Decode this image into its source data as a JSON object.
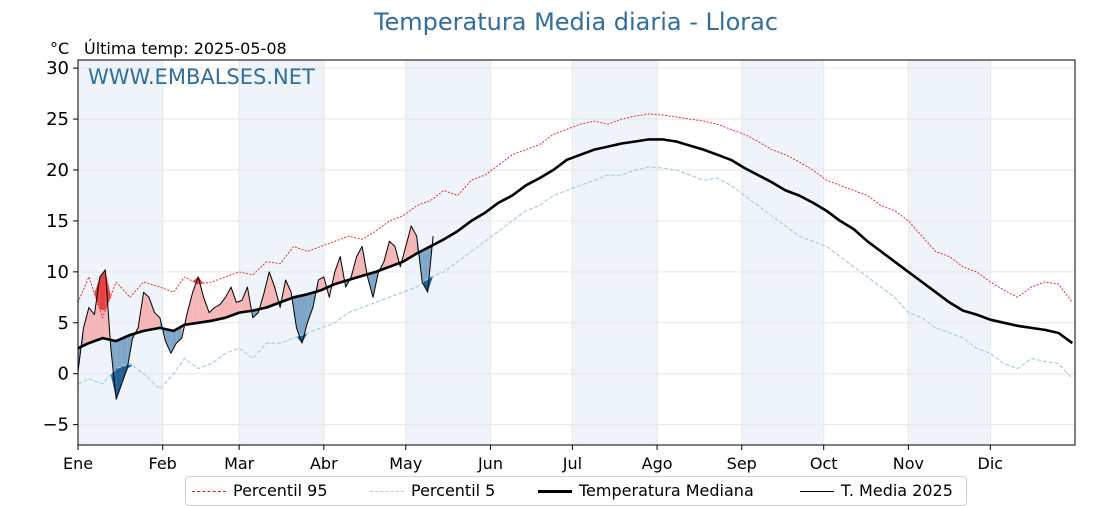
{
  "chart_data": {
    "type": "line",
    "title": "Temperatura Media diaria - Llorac",
    "unit_label": "°C",
    "last_temp_label": "Última temp: 2025-05-08",
    "watermark": "WWW.EMBALSES.NET",
    "ylim": [
      -7,
      30.8
    ],
    "yticks": [
      -5,
      0,
      5,
      10,
      15,
      20,
      25,
      30
    ],
    "months": [
      "Ene",
      "Feb",
      "Mar",
      "Abr",
      "May",
      "Jun",
      "Jul",
      "Ago",
      "Sep",
      "Oct",
      "Nov",
      "Dic"
    ],
    "month_start_days": [
      1,
      32,
      60,
      91,
      121,
      152,
      182,
      213,
      244,
      274,
      305,
      335
    ],
    "grid": true,
    "legend_position": "bottom",
    "colors": {
      "p95": "#e31a1c",
      "p5": "#a6cee3",
      "median": "#000000",
      "year": "#000000",
      "above": "#f4b6b6",
      "below": "#7ea6c8",
      "band": "#eef4fa",
      "title": "#2f6e9e"
    },
    "series": [
      {
        "key": "p95",
        "name": "Percentil 95",
        "points": [
          [
            1,
            7
          ],
          [
            5,
            9.5
          ],
          [
            10,
            5.5
          ],
          [
            15,
            9
          ],
          [
            20,
            7.5
          ],
          [
            25,
            9
          ],
          [
            31,
            8.5
          ],
          [
            36,
            8
          ],
          [
            40,
            9.5
          ],
          [
            45,
            8.8
          ],
          [
            50,
            9
          ],
          [
            55,
            9.5
          ],
          [
            60,
            10
          ],
          [
            65,
            9.7
          ],
          [
            70,
            11
          ],
          [
            75,
            10.8
          ],
          [
            80,
            12.5
          ],
          [
            85,
            12
          ],
          [
            90,
            12.5
          ],
          [
            95,
            13
          ],
          [
            100,
            13.5
          ],
          [
            105,
            13.2
          ],
          [
            110,
            14
          ],
          [
            115,
            15
          ],
          [
            120,
            15.5
          ],
          [
            125,
            16.5
          ],
          [
            130,
            17
          ],
          [
            135,
            18
          ],
          [
            140,
            17.5
          ],
          [
            145,
            19
          ],
          [
            150,
            19.5
          ],
          [
            155,
            20.5
          ],
          [
            160,
            21.5
          ],
          [
            165,
            22
          ],
          [
            170,
            22.5
          ],
          [
            175,
            23.5
          ],
          [
            180,
            24
          ],
          [
            185,
            24.5
          ],
          [
            190,
            24.8
          ],
          [
            195,
            24.5
          ],
          [
            200,
            25
          ],
          [
            205,
            25.3
          ],
          [
            210,
            25.5
          ],
          [
            215,
            25.4
          ],
          [
            220,
            25.2
          ],
          [
            225,
            25
          ],
          [
            230,
            24.8
          ],
          [
            235,
            24.5
          ],
          [
            240,
            24
          ],
          [
            245,
            23.5
          ],
          [
            250,
            22.8
          ],
          [
            255,
            22
          ],
          [
            260,
            21.5
          ],
          [
            265,
            20.8
          ],
          [
            270,
            20
          ],
          [
            275,
            19
          ],
          [
            280,
            18.5
          ],
          [
            285,
            18
          ],
          [
            290,
            17.5
          ],
          [
            295,
            16.5
          ],
          [
            300,
            16
          ],
          [
            305,
            15
          ],
          [
            310,
            13.5
          ],
          [
            315,
            12
          ],
          [
            320,
            11.5
          ],
          [
            325,
            10.5
          ],
          [
            330,
            10
          ],
          [
            335,
            9
          ],
          [
            340,
            8.2
          ],
          [
            345,
            7.5
          ],
          [
            350,
            8.5
          ],
          [
            355,
            9
          ],
          [
            360,
            8.8
          ],
          [
            365,
            7
          ]
        ]
      },
      {
        "key": "p5",
        "name": "Percentil 5",
        "points": [
          [
            1,
            -1
          ],
          [
            5,
            -0.5
          ],
          [
            10,
            -1
          ],
          [
            15,
            0.5
          ],
          [
            20,
            1
          ],
          [
            25,
            0
          ],
          [
            31,
            -1.5
          ],
          [
            36,
            0
          ],
          [
            40,
            1.5
          ],
          [
            45,
            0.5
          ],
          [
            50,
            1
          ],
          [
            55,
            2
          ],
          [
            60,
            2.5
          ],
          [
            65,
            1.5
          ],
          [
            70,
            3
          ],
          [
            75,
            3
          ],
          [
            80,
            3.5
          ],
          [
            85,
            4
          ],
          [
            90,
            4.5
          ],
          [
            95,
            5
          ],
          [
            100,
            6
          ],
          [
            105,
            6.5
          ],
          [
            110,
            7
          ],
          [
            115,
            7.5
          ],
          [
            120,
            8
          ],
          [
            125,
            8.5
          ],
          [
            130,
            9.5
          ],
          [
            135,
            10
          ],
          [
            140,
            11
          ],
          [
            145,
            12
          ],
          [
            150,
            13
          ],
          [
            155,
            14
          ],
          [
            160,
            15
          ],
          [
            165,
            16
          ],
          [
            170,
            16.5
          ],
          [
            175,
            17.5
          ],
          [
            180,
            18
          ],
          [
            185,
            18.5
          ],
          [
            190,
            19
          ],
          [
            195,
            19.5
          ],
          [
            200,
            19.5
          ],
          [
            205,
            20
          ],
          [
            210,
            20.3
          ],
          [
            215,
            20.2
          ],
          [
            220,
            20
          ],
          [
            225,
            19.5
          ],
          [
            230,
            19
          ],
          [
            235,
            19.2
          ],
          [
            240,
            18.5
          ],
          [
            245,
            17.5
          ],
          [
            250,
            16.5
          ],
          [
            255,
            15.5
          ],
          [
            260,
            14.5
          ],
          [
            265,
            13.5
          ],
          [
            270,
            13
          ],
          [
            275,
            12.5
          ],
          [
            280,
            11.5
          ],
          [
            285,
            10.5
          ],
          [
            290,
            9.5
          ],
          [
            295,
            8.5
          ],
          [
            300,
            7.5
          ],
          [
            305,
            6
          ],
          [
            310,
            5.5
          ],
          [
            315,
            4.5
          ],
          [
            320,
            4
          ],
          [
            325,
            3.5
          ],
          [
            330,
            2.5
          ],
          [
            335,
            2
          ],
          [
            340,
            1
          ],
          [
            345,
            0.5
          ],
          [
            350,
            1.5
          ],
          [
            355,
            1.2
          ],
          [
            360,
            1
          ],
          [
            365,
            -0.5
          ]
        ]
      },
      {
        "key": "median",
        "name": "Temperatura Mediana",
        "points": [
          [
            1,
            2.5
          ],
          [
            5,
            3
          ],
          [
            10,
            3.5
          ],
          [
            15,
            3.2
          ],
          [
            20,
            3.8
          ],
          [
            25,
            4.2
          ],
          [
            31,
            4.5
          ],
          [
            36,
            4.2
          ],
          [
            40,
            4.8
          ],
          [
            45,
            5
          ],
          [
            50,
            5.2
          ],
          [
            55,
            5.5
          ],
          [
            60,
            6
          ],
          [
            65,
            6.2
          ],
          [
            70,
            6.5
          ],
          [
            75,
            7
          ],
          [
            80,
            7.5
          ],
          [
            85,
            7.8
          ],
          [
            90,
            8.2
          ],
          [
            95,
            8.8
          ],
          [
            100,
            9.2
          ],
          [
            105,
            9.6
          ],
          [
            110,
            10
          ],
          [
            115,
            10.5
          ],
          [
            120,
            11
          ],
          [
            125,
            11.8
          ],
          [
            130,
            12.5
          ],
          [
            135,
            13.2
          ],
          [
            140,
            14
          ],
          [
            145,
            15
          ],
          [
            150,
            15.8
          ],
          [
            155,
            16.8
          ],
          [
            160,
            17.5
          ],
          [
            165,
            18.5
          ],
          [
            170,
            19.2
          ],
          [
            175,
            20
          ],
          [
            180,
            21
          ],
          [
            185,
            21.5
          ],
          [
            190,
            22
          ],
          [
            195,
            22.3
          ],
          [
            200,
            22.6
          ],
          [
            205,
            22.8
          ],
          [
            210,
            23
          ],
          [
            215,
            23
          ],
          [
            220,
            22.8
          ],
          [
            225,
            22.4
          ],
          [
            230,
            22
          ],
          [
            235,
            21.5
          ],
          [
            240,
            21
          ],
          [
            245,
            20.2
          ],
          [
            250,
            19.5
          ],
          [
            255,
            18.8
          ],
          [
            260,
            18
          ],
          [
            265,
            17.5
          ],
          [
            270,
            16.8
          ],
          [
            275,
            16
          ],
          [
            280,
            15
          ],
          [
            285,
            14.2
          ],
          [
            290,
            13
          ],
          [
            295,
            12
          ],
          [
            300,
            11
          ],
          [
            305,
            10
          ],
          [
            310,
            9
          ],
          [
            315,
            8
          ],
          [
            320,
            7
          ],
          [
            325,
            6.2
          ],
          [
            330,
            5.8
          ],
          [
            335,
            5.3
          ],
          [
            340,
            5
          ],
          [
            345,
            4.7
          ],
          [
            350,
            4.5
          ],
          [
            355,
            4.3
          ],
          [
            360,
            4
          ],
          [
            365,
            3
          ]
        ]
      },
      {
        "key": "year",
        "name": "T. Media 2025",
        "points": [
          [
            1,
            0.2
          ],
          [
            3,
            4.5
          ],
          [
            5,
            6.5
          ],
          [
            7,
            5.8
          ],
          [
            9,
            9.5
          ],
          [
            11,
            10.2
          ],
          [
            13,
            2.5
          ],
          [
            15,
            -2.5
          ],
          [
            17,
            -1
          ],
          [
            19,
            0.5
          ],
          [
            21,
            3.5
          ],
          [
            23,
            4.5
          ],
          [
            25,
            8
          ],
          [
            27,
            7.5
          ],
          [
            29,
            6
          ],
          [
            31,
            5.5
          ],
          [
            33,
            3.2
          ],
          [
            35,
            2
          ],
          [
            37,
            3
          ],
          [
            39,
            3.5
          ],
          [
            41,
            6
          ],
          [
            43,
            8
          ],
          [
            45,
            9.5
          ],
          [
            47,
            7.5
          ],
          [
            49,
            6
          ],
          [
            51,
            6.5
          ],
          [
            53,
            6.8
          ],
          [
            55,
            7.5
          ],
          [
            57,
            8.5
          ],
          [
            59,
            7
          ],
          [
            61,
            7.2
          ],
          [
            63,
            8.5
          ],
          [
            65,
            5.5
          ],
          [
            67,
            6
          ],
          [
            69,
            7.8
          ],
          [
            71,
            10
          ],
          [
            73,
            8.5
          ],
          [
            75,
            6.5
          ],
          [
            77,
            9.2
          ],
          [
            79,
            8
          ],
          [
            81,
            4.5
          ],
          [
            83,
            3
          ],
          [
            85,
            5
          ],
          [
            87,
            6.5
          ],
          [
            89,
            9.2
          ],
          [
            91,
            9.5
          ],
          [
            93,
            7.5
          ],
          [
            95,
            10
          ],
          [
            97,
            11.5
          ],
          [
            99,
            8.5
          ],
          [
            101,
            9.5
          ],
          [
            103,
            11.5
          ],
          [
            105,
            12.5
          ],
          [
            107,
            9.5
          ],
          [
            109,
            7.5
          ],
          [
            111,
            10
          ],
          [
            113,
            11
          ],
          [
            115,
            13
          ],
          [
            117,
            12.5
          ],
          [
            119,
            10.5
          ],
          [
            121,
            12.5
          ],
          [
            123,
            14.5
          ],
          [
            125,
            13.5
          ],
          [
            127,
            9
          ],
          [
            129,
            8
          ],
          [
            131,
            13.5
          ]
        ]
      }
    ],
    "fill_days": [
      1,
      3,
      5,
      7,
      9,
      11,
      13,
      15,
      17,
      19,
      21,
      23,
      25,
      27,
      29,
      31,
      33,
      35,
      37,
      39,
      41,
      43,
      45,
      47,
      49,
      51,
      53,
      55,
      57,
      59,
      61,
      63,
      65,
      67,
      69,
      71,
      73,
      75,
      77,
      79,
      81,
      83,
      85,
      87,
      89,
      91,
      93,
      95,
      97,
      99,
      101,
      103,
      105,
      107,
      109,
      111,
      113,
      115,
      117,
      119,
      121,
      123,
      125,
      127,
      129,
      131
    ]
  },
  "legend": [
    "Percentil 95",
    "Percentil 5",
    "Temperatura Mediana",
    "T. Media 2025"
  ]
}
